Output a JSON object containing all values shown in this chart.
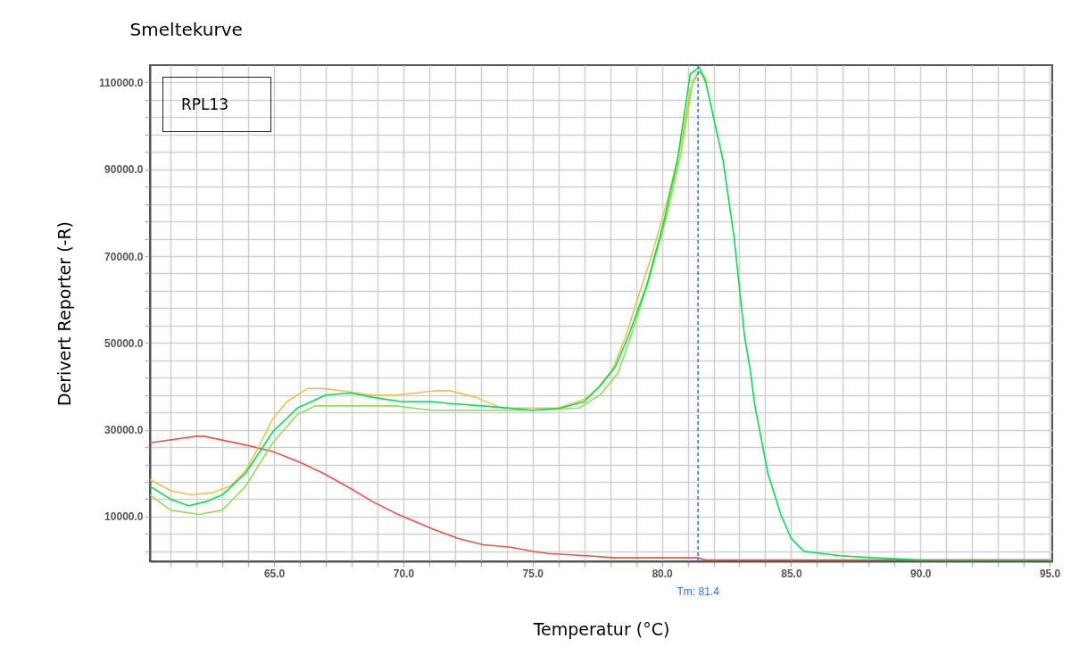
{
  "chart_data": {
    "type": "line",
    "title": "Smeltekurve",
    "xlabel": "Temperatur (°C)",
    "ylabel": "Derivert Reporter (-R)",
    "annotations": [
      "RPL13"
    ],
    "xlim": [
      60.2,
      95.1
    ],
    "ylim": [
      -300,
      114000
    ],
    "xticks": [
      {
        "value": 61,
        "label": null
      },
      {
        "value": 62,
        "label": null
      },
      {
        "value": 63,
        "label": null
      },
      {
        "value": 64,
        "label": null
      },
      {
        "value": 65,
        "label": "65.0"
      },
      {
        "value": 66,
        "label": null
      },
      {
        "value": 67,
        "label": null
      },
      {
        "value": 68,
        "label": null
      },
      {
        "value": 69,
        "label": null
      },
      {
        "value": 70,
        "label": "70.0"
      },
      {
        "value": 71,
        "label": null
      },
      {
        "value": 72,
        "label": null
      },
      {
        "value": 73,
        "label": null
      },
      {
        "value": 74,
        "label": null
      },
      {
        "value": 75,
        "label": "75.0"
      },
      {
        "value": 76,
        "label": null
      },
      {
        "value": 77,
        "label": null
      },
      {
        "value": 78,
        "label": null
      },
      {
        "value": 79,
        "label": null
      },
      {
        "value": 80,
        "label": "80.0"
      },
      {
        "value": 81,
        "label": null
      },
      {
        "value": 82,
        "label": null
      },
      {
        "value": 83,
        "label": null
      },
      {
        "value": 84,
        "label": null
      },
      {
        "value": 85,
        "label": "85.0"
      },
      {
        "value": 86,
        "label": null
      },
      {
        "value": 87,
        "label": null
      },
      {
        "value": 88,
        "label": null
      },
      {
        "value": 89,
        "label": null
      },
      {
        "value": 90,
        "label": "90.0"
      },
      {
        "value": 91,
        "label": null
      },
      {
        "value": 92,
        "label": null
      },
      {
        "value": 93,
        "label": null
      },
      {
        "value": 94,
        "label": null
      },
      {
        "value": 95,
        "label": "95.0"
      }
    ],
    "yticks": [
      {
        "value": 2000,
        "label": null
      },
      {
        "value": 6000,
        "label": null
      },
      {
        "value": 10000,
        "label": "10000.0"
      },
      {
        "value": 14000,
        "label": null
      },
      {
        "value": 18000,
        "label": null
      },
      {
        "value": 22000,
        "label": null
      },
      {
        "value": 26000,
        "label": null
      },
      {
        "value": 30000,
        "label": "30000.0"
      },
      {
        "value": 34000,
        "label": null
      },
      {
        "value": 38000,
        "label": null
      },
      {
        "value": 42000,
        "label": null
      },
      {
        "value": 46000,
        "label": null
      },
      {
        "value": 50000,
        "label": "50000.0"
      },
      {
        "value": 54000,
        "label": null
      },
      {
        "value": 58000,
        "label": null
      },
      {
        "value": 62000,
        "label": null
      },
      {
        "value": 66000,
        "label": null
      },
      {
        "value": 70000,
        "label": "70000.0"
      },
      {
        "value": 74000,
        "label": null
      },
      {
        "value": 78000,
        "label": null
      },
      {
        "value": 82000,
        "label": null
      },
      {
        "value": 86000,
        "label": null
      },
      {
        "value": 90000,
        "label": "90000.0"
      },
      {
        "value": 94000,
        "label": null
      },
      {
        "value": 98000,
        "label": null
      },
      {
        "value": 102000,
        "label": null
      },
      {
        "value": 106000,
        "label": null
      },
      {
        "value": 110000,
        "label": "110000.0"
      }
    ],
    "grid": true,
    "line_style": "solid",
    "ref_lines": [
      {
        "axis": "x",
        "value": 81.4,
        "label": "Tm: 81.4",
        "color": "#3070f0",
        "line_style": "dashed"
      }
    ],
    "series": [
      {
        "color": "#f05050",
        "x": [
          60.2,
          62.0,
          62.3,
          63.9,
          64.95,
          66.0,
          66.9,
          67.95,
          68.8,
          69.8,
          71.2,
          72.1,
          73.1,
          74.1,
          75.0,
          75.6,
          77.1,
          78.2,
          79.6,
          81.4,
          81.7,
          90.0,
          95.0
        ],
        "values": [
          27000,
          28500,
          28500,
          26500,
          25000,
          22500,
          20000,
          16500,
          13500,
          10500,
          7000,
          5000,
          3500,
          3000,
          2000,
          1500,
          1000,
          500,
          500,
          500,
          0,
          0,
          0
        ]
      },
      {
        "color": "#f0c050",
        "x": [
          60.2,
          61.0,
          61.8,
          62.6,
          63.3,
          63.9,
          64.4,
          64.95,
          65.5,
          66.3,
          66.9,
          67.6,
          68.8,
          69.7,
          70.5,
          71.3,
          71.8,
          72.8,
          73.8,
          75.0,
          76.0,
          77.0,
          77.5,
          78.1,
          78.6,
          79.0,
          79.6,
          80.2,
          80.75,
          81.1,
          81.45,
          81.8
        ],
        "values": [
          18500,
          16000,
          15000,
          15500,
          17000,
          20500,
          26000,
          32500,
          36500,
          39500,
          39500,
          39000,
          38000,
          38000,
          38500,
          39000,
          39000,
          37500,
          35000,
          35000,
          35000,
          37000,
          39500,
          44000,
          51500,
          59000,
          70000,
          82500,
          96000,
          108500,
          112500,
          110000
        ]
      },
      {
        "color": "#90e050",
        "x": [
          60.2,
          61.0,
          62.1,
          63.0,
          63.9,
          64.95,
          65.9,
          66.6,
          67.6,
          68.8,
          69.7,
          71.1,
          72.2,
          73.4,
          75.0,
          76.8,
          77.6,
          78.3,
          78.8,
          79.5,
          80.2,
          80.75,
          81.2,
          81.45,
          81.7
        ],
        "values": [
          15000,
          11500,
          10500,
          11500,
          17000,
          27000,
          33500,
          35500,
          35500,
          35500,
          35500,
          34500,
          34500,
          34500,
          34500,
          35000,
          38000,
          43000,
          51500,
          64500,
          79500,
          94000,
          110500,
          112500,
          111000
        ]
      },
      {
        "color": "#00e050",
        "x": [
          60.2,
          61.0,
          61.7,
          62.4,
          63.0,
          63.9,
          64.95,
          65.9,
          67.0,
          67.95,
          68.8,
          69.9,
          71.1,
          71.9,
          73.1,
          75.0,
          76.1,
          77.0,
          77.6,
          78.2,
          78.7,
          79.4,
          80.06,
          80.6,
          81.1,
          81.45,
          81.7,
          82.37,
          82.8,
          83.2,
          83.4,
          83.6,
          84.1,
          84.6,
          85.0,
          85.5,
          86.9,
          88.2,
          90.0,
          95.0
        ],
        "values": [
          17000,
          14000,
          12500,
          13500,
          15000,
          20000,
          29500,
          35000,
          38000,
          38500,
          37500,
          36500,
          36500,
          36000,
          35500,
          34500,
          35000,
          36500,
          40000,
          44500,
          51500,
          63000,
          77500,
          92000,
          112000,
          113500,
          110000,
          92000,
          74000,
          51500,
          44500,
          35500,
          20000,
          10500,
          5000,
          2000,
          1000,
          500,
          0,
          0
        ]
      }
    ]
  }
}
